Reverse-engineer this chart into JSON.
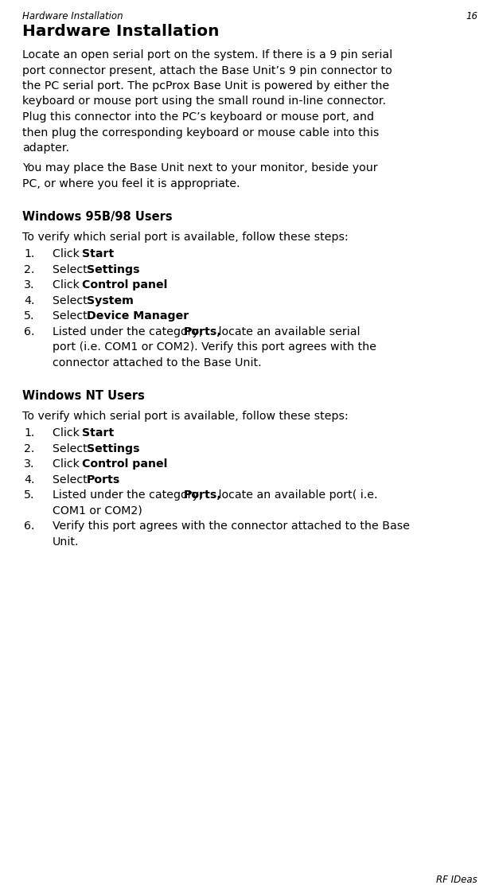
{
  "bg_color": "#ffffff",
  "header_italic": "Hardware Installation",
  "header_page": "16",
  "title_bold": "Hardware Installation",
  "body_para1_lines": [
    "Locate an open serial port on the system. If there is a 9 pin serial",
    "port connector present, attach the Base Unit’s 9 pin connector to",
    "the PC serial port. The pcProx Base Unit is powered by either the",
    "keyboard or mouse port using the small round in-line connector.",
    "Plug this connector into the PC’s keyboard or mouse port, and",
    "then plug the corresponding keyboard or mouse cable into this",
    "adapter."
  ],
  "body_para2_lines": [
    "You may place the Base Unit next to your monitor, beside your",
    "PC, or where you feel it is appropriate."
  ],
  "section1_title": "Windows 95B/98 Users",
  "section1_intro": "To verify which serial port is available, follow these steps:",
  "section1_items": [
    {
      "num": "1.",
      "parts": [
        {
          "text": "Click ",
          "bold": false
        },
        {
          "text": "Start",
          "bold": true
        }
      ]
    },
    {
      "num": "2.",
      "parts": [
        {
          "text": "Select ",
          "bold": false
        },
        {
          "text": "Settings",
          "bold": true
        }
      ]
    },
    {
      "num": "3.",
      "parts": [
        {
          "text": "Click ",
          "bold": false
        },
        {
          "text": "Control panel",
          "bold": true
        }
      ]
    },
    {
      "num": "4.",
      "parts": [
        {
          "text": "Select ",
          "bold": false
        },
        {
          "text": "System",
          "bold": true
        }
      ]
    },
    {
      "num": "5.",
      "parts": [
        {
          "text": "Select ",
          "bold": false
        },
        {
          "text": "Device Manager",
          "bold": true
        }
      ]
    },
    {
      "num": "6.",
      "parts": [
        {
          "text": "Listed under the category, ",
          "bold": false
        },
        {
          "text": "Ports,",
          "bold": true
        },
        {
          "text": " locate an available serial",
          "bold": false
        }
      ],
      "continuation": [
        "port (i.e. COM1 or COM2). Verify this port agrees with the",
        "connector attached to the Base Unit."
      ]
    }
  ],
  "section2_title": "Windows NT Users",
  "section2_intro": "To verify which serial port is available, follow these steps:",
  "section2_items": [
    {
      "num": "1.",
      "parts": [
        {
          "text": "Click ",
          "bold": false
        },
        {
          "text": "Start",
          "bold": true
        }
      ]
    },
    {
      "num": "2.",
      "parts": [
        {
          "text": "Select ",
          "bold": false
        },
        {
          "text": "Settings",
          "bold": true
        }
      ]
    },
    {
      "num": "3.",
      "parts": [
        {
          "text": "Click ",
          "bold": false
        },
        {
          "text": "Control panel",
          "bold": true
        }
      ]
    },
    {
      "num": "4.",
      "parts": [
        {
          "text": "Select ",
          "bold": false
        },
        {
          "text": "Ports",
          "bold": true
        }
      ]
    },
    {
      "num": "5.",
      "parts": [
        {
          "text": "Listed under the category, ",
          "bold": false
        },
        {
          "text": "Ports,",
          "bold": true
        },
        {
          "text": " locate an available port( i.e.",
          "bold": false
        }
      ],
      "continuation": [
        "COM1 or COM2)"
      ]
    },
    {
      "num": "6.",
      "parts": [
        {
          "text": "Verify this port agrees with the connector attached to the Base",
          "bold": false
        }
      ],
      "continuation": [
        "Unit."
      ]
    }
  ],
  "footer_right": "RF IDeas"
}
